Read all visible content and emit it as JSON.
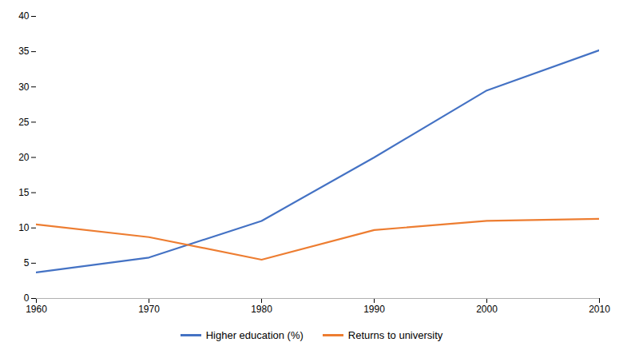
{
  "chart_data": {
    "type": "line",
    "x": [
      1960,
      1970,
      1980,
      1990,
      2000,
      2010
    ],
    "series": [
      {
        "name": "Higher education (%)",
        "color": "#4472C4",
        "values": [
          3.7,
          5.8,
          11.0,
          20.0,
          29.5,
          35.2
        ]
      },
      {
        "name": "Returns to university",
        "color": "#ED7D31",
        "values": [
          10.5,
          8.7,
          5.5,
          9.7,
          11.0,
          11.3
        ]
      }
    ],
    "xlim": [
      1960,
      2010
    ],
    "xticks": [
      1960,
      1970,
      1980,
      1990,
      2000,
      2010
    ],
    "ylim": [
      0,
      40
    ],
    "yticks": [
      0,
      5,
      10,
      15,
      20,
      25,
      30,
      35,
      40
    ],
    "grid": false,
    "legend": "bottom"
  }
}
